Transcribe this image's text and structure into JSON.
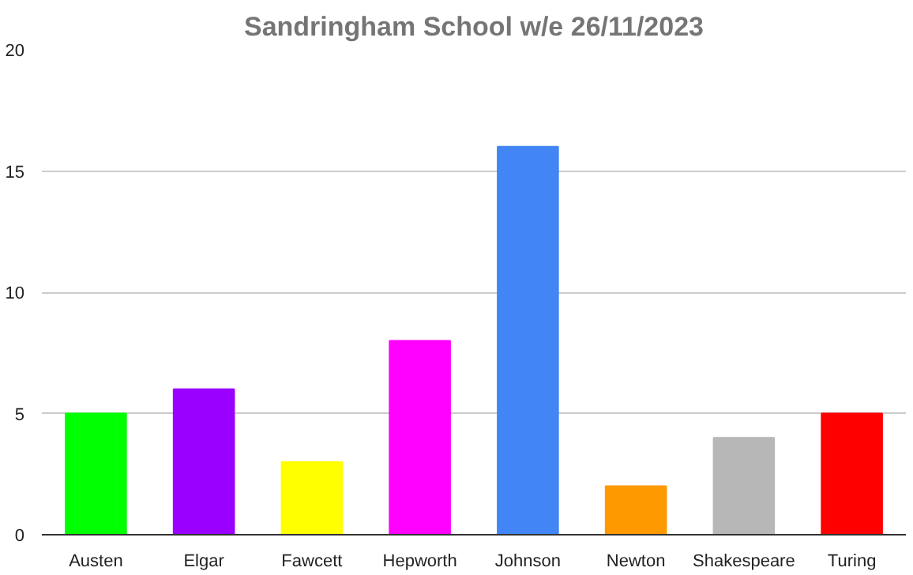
{
  "chart_data": {
    "type": "bar",
    "title": "Sandringham School w/e 26/11/2023",
    "categories": [
      "Austen",
      "Elgar",
      "Fawcett",
      "Hepworth",
      "Johnson",
      "Newton",
      "Shakespeare",
      "Turing"
    ],
    "values": [
      5,
      6,
      3,
      8,
      16,
      2,
      4,
      5
    ],
    "colors": [
      "#00ff00",
      "#9900ff",
      "#ffff00",
      "#ff00ff",
      "#4285f4",
      "#ff9900",
      "#b7b7b7",
      "#ff0000"
    ],
    "ylim": [
      0,
      20
    ],
    "yticks": [
      0,
      5,
      10,
      15,
      20
    ],
    "grid": "y"
  }
}
